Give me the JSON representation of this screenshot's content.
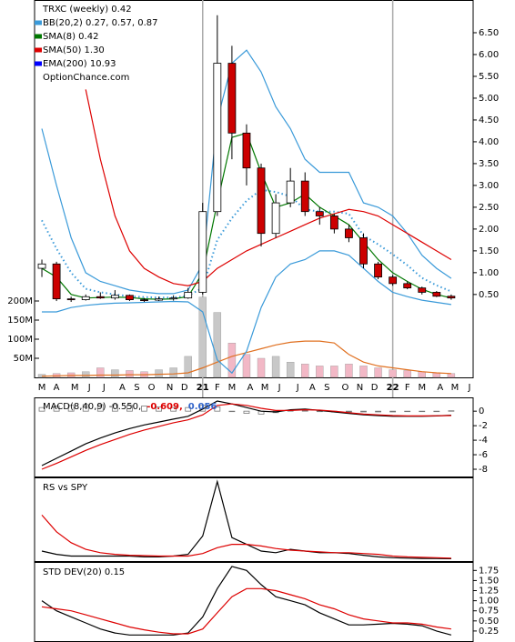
{
  "chart_data": [
    {
      "type": "candlestick",
      "title": "TRXC (weekly) 0.42",
      "annotation": "OptionChance.com",
      "x": [
        0,
        4,
        8,
        12,
        16,
        20,
        24,
        28,
        32,
        36,
        40,
        44,
        48,
        52,
        56,
        60,
        64,
        68,
        72,
        76,
        80,
        84,
        88,
        92,
        96,
        100,
        104,
        108,
        112
      ],
      "open": [
        1.1,
        1.2,
        0.4,
        0.38,
        0.45,
        0.42,
        0.48,
        0.38,
        0.37,
        0.4,
        0.42,
        0.55,
        2.4,
        5.8,
        4.2,
        3.4,
        1.9,
        2.6,
        3.1,
        2.4,
        2.3,
        2.0,
        1.8,
        1.2,
        0.9,
        0.75,
        0.65,
        0.55,
        0.46
      ],
      "high": [
        1.3,
        1.25,
        0.45,
        0.5,
        0.55,
        0.6,
        0.5,
        0.42,
        0.45,
        0.48,
        0.65,
        2.6,
        6.9,
        6.2,
        4.4,
        3.5,
        2.8,
        3.4,
        3.3,
        2.5,
        2.35,
        2.1,
        1.9,
        1.25,
        0.95,
        0.8,
        0.68,
        0.58,
        0.5
      ],
      "low": [
        0.9,
        0.35,
        0.33,
        0.36,
        0.4,
        0.38,
        0.35,
        0.33,
        0.35,
        0.36,
        0.4,
        0.5,
        2.3,
        3.6,
        3.0,
        1.6,
        1.8,
        2.5,
        2.3,
        2.1,
        1.9,
        1.7,
        1.1,
        0.85,
        0.7,
        0.62,
        0.5,
        0.44,
        0.38
      ],
      "close": [
        1.2,
        0.4,
        0.38,
        0.45,
        0.42,
        0.48,
        0.38,
        0.37,
        0.4,
        0.42,
        0.55,
        2.4,
        5.8,
        4.2,
        3.4,
        1.9,
        2.6,
        3.1,
        2.4,
        2.3,
        2.0,
        1.8,
        1.2,
        0.9,
        0.75,
        0.65,
        0.55,
        0.46,
        0.42
      ],
      "up_color": "#ffffff",
      "down_color": "#cc0000",
      "series": [
        {
          "name": "BB(20,2) 0.27, 0.57, 0.87",
          "color": "#3a9ad9",
          "values": [
            2.2,
            1.55,
            1.0,
            0.63,
            0.55,
            0.5,
            0.46,
            0.44,
            0.43,
            0.43,
            0.47,
            0.65,
            1.75,
            2.25,
            2.65,
            2.9,
            2.85,
            2.75,
            2.45,
            2.4,
            2.4,
            2.35,
            1.85,
            1.65,
            1.42,
            1.17,
            0.88,
            0.71,
            0.57
          ],
          "upper": [
            4.3,
            3.0,
            1.8,
            1.0,
            0.8,
            0.7,
            0.6,
            0.55,
            0.52,
            0.52,
            0.6,
            1.2,
            4.5,
            5.8,
            6.1,
            5.6,
            4.8,
            4.3,
            3.6,
            3.3,
            3.3,
            3.3,
            2.6,
            2.5,
            2.3,
            1.9,
            1.4,
            1.1,
            0.87
          ],
          "lower": [
            0.1,
            0.1,
            0.2,
            0.25,
            0.28,
            0.3,
            0.31,
            0.32,
            0.33,
            0.34,
            0.33,
            0.1,
            -1.0,
            -1.3,
            -0.8,
            0.2,
            0.9,
            1.2,
            1.3,
            1.5,
            1.5,
            1.4,
            1.1,
            0.8,
            0.55,
            0.45,
            0.37,
            0.32,
            0.27
          ]
        },
        {
          "name": "SMA(8) 0.42",
          "color": "#007700",
          "values": [
            1.1,
            0.9,
            0.5,
            0.42,
            0.43,
            0.44,
            0.43,
            0.4,
            0.39,
            0.4,
            0.45,
            1.0,
            2.6,
            4.1,
            4.2,
            3.3,
            2.5,
            2.6,
            2.8,
            2.5,
            2.3,
            2.1,
            1.7,
            1.3,
            1.0,
            0.8,
            0.62,
            0.5,
            0.42
          ]
        },
        {
          "name": "SMA(50) 1.30",
          "color": "#dd0000",
          "values": [
            null,
            null,
            null,
            5.2,
            3.6,
            2.3,
            1.5,
            1.1,
            0.9,
            0.75,
            0.7,
            0.8,
            1.1,
            1.3,
            1.5,
            1.65,
            1.8,
            1.95,
            2.1,
            2.25,
            2.35,
            2.45,
            2.4,
            2.3,
            2.1,
            1.9,
            1.7,
            1.5,
            1.3
          ]
        },
        {
          "name": "EMA(200) 10.93",
          "color": "#0000ff"
        }
      ],
      "volume": [
        8,
        10,
        12,
        15,
        25,
        20,
        18,
        15,
        20,
        25,
        55,
        210,
        170,
        90,
        60,
        50,
        55,
        40,
        35,
        30,
        30,
        35,
        30,
        25,
        20,
        18,
        15,
        12,
        10
      ],
      "volume_ma": [
        3,
        4,
        5,
        5,
        6,
        6,
        7,
        7,
        8,
        9,
        12,
        25,
        40,
        55,
        65,
        75,
        85,
        92,
        95,
        95,
        90,
        60,
        40,
        30,
        25,
        20,
        15,
        12,
        10
      ],
      "volume_up_color": "#c8c8c8",
      "volume_down_color": "#f2b8c6",
      "volume_ma_color": "#e07020",
      "xlim": [
        -2,
        118
      ],
      "xticks": [
        {
          "value": 0,
          "label": "M"
        },
        {
          "value": 4,
          "label": "A"
        },
        {
          "value": 9,
          "label": "M"
        },
        {
          "value": 13,
          "label": "J"
        },
        {
          "value": 17,
          "label": "J"
        },
        {
          "value": 22,
          "label": "A"
        },
        {
          "value": 26,
          "label": "S"
        },
        {
          "value": 30,
          "label": "O"
        },
        {
          "value": 35,
          "label": "N"
        },
        {
          "value": 39,
          "label": "D"
        },
        {
          "value": 44,
          "label": "21",
          "bold": true
        },
        {
          "value": 48,
          "label": "F"
        },
        {
          "value": 52,
          "label": "M"
        },
        {
          "value": 57,
          "label": "A"
        },
        {
          "value": 61,
          "label": "M"
        },
        {
          "value": 65,
          "label": "J"
        },
        {
          "value": 70,
          "label": "J"
        },
        {
          "value": 74,
          "label": "A"
        },
        {
          "value": 78,
          "label": "S"
        },
        {
          "value": 83,
          "label": "O"
        },
        {
          "value": 87,
          "label": "N"
        },
        {
          "value": 91,
          "label": "D"
        },
        {
          "value": 96,
          "label": "22",
          "bold": true
        },
        {
          "value": 100,
          "label": "F"
        },
        {
          "value": 104,
          "label": "M"
        },
        {
          "value": 109,
          "label": "A"
        },
        {
          "value": 113,
          "label": "M"
        },
        {
          "value": 117,
          "label": "J"
        }
      ],
      "ylim": [
        -1.4,
        7.25
      ],
      "yticks": [
        {
          "value": 0.5,
          "label": "0.50"
        },
        {
          "value": 1,
          "label": "1.00"
        },
        {
          "value": 1.5,
          "label": "1.50"
        },
        {
          "value": 2,
          "label": "2.00"
        },
        {
          "value": 2.5,
          "label": "2.50"
        },
        {
          "value": 3,
          "label": "3.00"
        },
        {
          "value": 3.5,
          "label": "3.50"
        },
        {
          "value": 4,
          "label": "4.00"
        },
        {
          "value": 4.5,
          "label": "4.50"
        },
        {
          "value": 5,
          "label": "5.00"
        },
        {
          "value": 5.5,
          "label": "5.50"
        },
        {
          "value": 6,
          "label": "6.00"
        },
        {
          "value": 6.5,
          "label": "6.50"
        }
      ],
      "y2lim": [
        0,
        988
      ],
      "y2ticks": [
        {
          "value": 50,
          "label": "50M"
        },
        {
          "value": 100,
          "label": "100M"
        },
        {
          "value": 150,
          "label": "150M"
        },
        {
          "value": 200,
          "label": "200M"
        }
      ]
    },
    {
      "type": "line",
      "x": [
        0,
        4,
        8,
        12,
        16,
        20,
        24,
        28,
        32,
        36,
        40,
        44,
        48,
        52,
        56,
        60,
        64,
        68,
        72,
        76,
        80,
        84,
        88,
        92,
        96,
        100,
        104,
        108,
        112
      ],
      "xlim": [
        -2,
        118
      ],
      "ylim": [
        -9,
        1.9
      ],
      "yticks": [
        0,
        -2,
        -4,
        -6,
        -8
      ],
      "series": [
        {
          "name": "MACD(8,40,9) -0.550,",
          "color": "#000000",
          "values": [
            -7.5,
            -6.5,
            -5.5,
            -4.5,
            -3.7,
            -3.0,
            -2.4,
            -1.9,
            -1.5,
            -1.1,
            -0.7,
            0.3,
            1.4,
            1.0,
            0.5,
            0.0,
            -0.1,
            0.2,
            0.3,
            0.1,
            -0.1,
            -0.3,
            -0.5,
            -0.6,
            -0.7,
            -0.7,
            -0.7,
            -0.65,
            -0.55
          ]
        },
        {
          "name": "-0.609,",
          "color": "#dd0000",
          "values": [
            -8,
            -7.2,
            -6.3,
            -5.4,
            -4.6,
            -3.9,
            -3.2,
            -2.6,
            -2.1,
            -1.6,
            -1.2,
            -0.5,
            0.8,
            1.0,
            0.8,
            0.4,
            0.1,
            0.1,
            0.2,
            0.15,
            0.0,
            -0.2,
            -0.4,
            -0.5,
            -0.6,
            -0.65,
            -0.65,
            -0.63,
            -0.609
          ]
        },
        {
          "name": "0.056",
          "color": "#3366cc",
          "style": "histogram",
          "bar_color": "#777777",
          "values": [
            0.5,
            0.7,
            0.8,
            0.9,
            0.9,
            0.9,
            0.8,
            0.7,
            0.6,
            0.5,
            0.5,
            0.8,
            0.6,
            0.0,
            -0.3,
            -0.4,
            -0.2,
            0.1,
            0.1,
            -0.05,
            -0.1,
            -0.1,
            -0.1,
            -0.1,
            -0.1,
            -0.05,
            -0.05,
            -0.02,
            0.056
          ]
        }
      ]
    },
    {
      "type": "line",
      "title": "RS vs SPY",
      "x": [
        0,
        4,
        8,
        12,
        16,
        20,
        24,
        28,
        32,
        36,
        40,
        44,
        48,
        52,
        56,
        60,
        64,
        68,
        72,
        76,
        80,
        84,
        88,
        92,
        96,
        100,
        104,
        108,
        112
      ],
      "xlim": [
        -2,
        118
      ],
      "ylim": [
        0,
        10
      ],
      "series": [
        {
          "color": "#000000",
          "values": [
            1.2,
            0.8,
            0.6,
            0.6,
            0.6,
            0.6,
            0.6,
            0.5,
            0.5,
            0.6,
            0.8,
            3.0,
            9.5,
            2.8,
            2.0,
            1.2,
            1.0,
            1.4,
            1.2,
            1.0,
            1.0,
            0.9,
            0.7,
            0.5,
            0.4,
            0.35,
            0.3,
            0.3,
            0.28
          ]
        },
        {
          "color": "#dd0000",
          "values": [
            5.5,
            3.5,
            2.2,
            1.4,
            1.0,
            0.8,
            0.7,
            0.65,
            0.6,
            0.6,
            0.6,
            0.9,
            1.6,
            2.0,
            2.0,
            1.8,
            1.5,
            1.3,
            1.2,
            1.1,
            1.0,
            1.0,
            0.9,
            0.8,
            0.6,
            0.5,
            0.45,
            0.4,
            0.35
          ]
        }
      ]
    },
    {
      "type": "line",
      "title": "STD DEV(20) 0.15",
      "x": [
        0,
        4,
        8,
        12,
        16,
        20,
        24,
        28,
        32,
        36,
        40,
        44,
        48,
        52,
        56,
        60,
        64,
        68,
        72,
        76,
        80,
        84,
        88,
        92,
        96,
        100,
        104,
        108,
        112
      ],
      "xlim": [
        -2,
        118
      ],
      "ylim": [
        0,
        1.96
      ],
      "yticks": [
        0.25,
        {
          "value": 0.5,
          "label": "0.50"
        },
        0.75,
        {
          "value": 1,
          "label": "1.00"
        },
        1.25,
        {
          "value": 1.5,
          "label": "1.50"
        },
        1.75
      ],
      "series": [
        {
          "color": "#000000",
          "values": [
            1.0,
            0.75,
            0.6,
            0.45,
            0.3,
            0.2,
            0.15,
            0.15,
            0.15,
            0.15,
            0.2,
            0.6,
            1.3,
            1.85,
            1.75,
            1.4,
            1.1,
            1.0,
            0.9,
            0.7,
            0.55,
            0.4,
            0.4,
            0.42,
            0.44,
            0.42,
            0.38,
            0.25,
            0.15
          ]
        },
        {
          "color": "#dd0000",
          "values": [
            0.85,
            0.8,
            0.75,
            0.65,
            0.55,
            0.45,
            0.35,
            0.28,
            0.22,
            0.18,
            0.18,
            0.3,
            0.7,
            1.1,
            1.3,
            1.3,
            1.25,
            1.15,
            1.05,
            0.9,
            0.8,
            0.65,
            0.55,
            0.5,
            0.45,
            0.45,
            0.42,
            0.35,
            0.3
          ]
        }
      ]
    }
  ]
}
